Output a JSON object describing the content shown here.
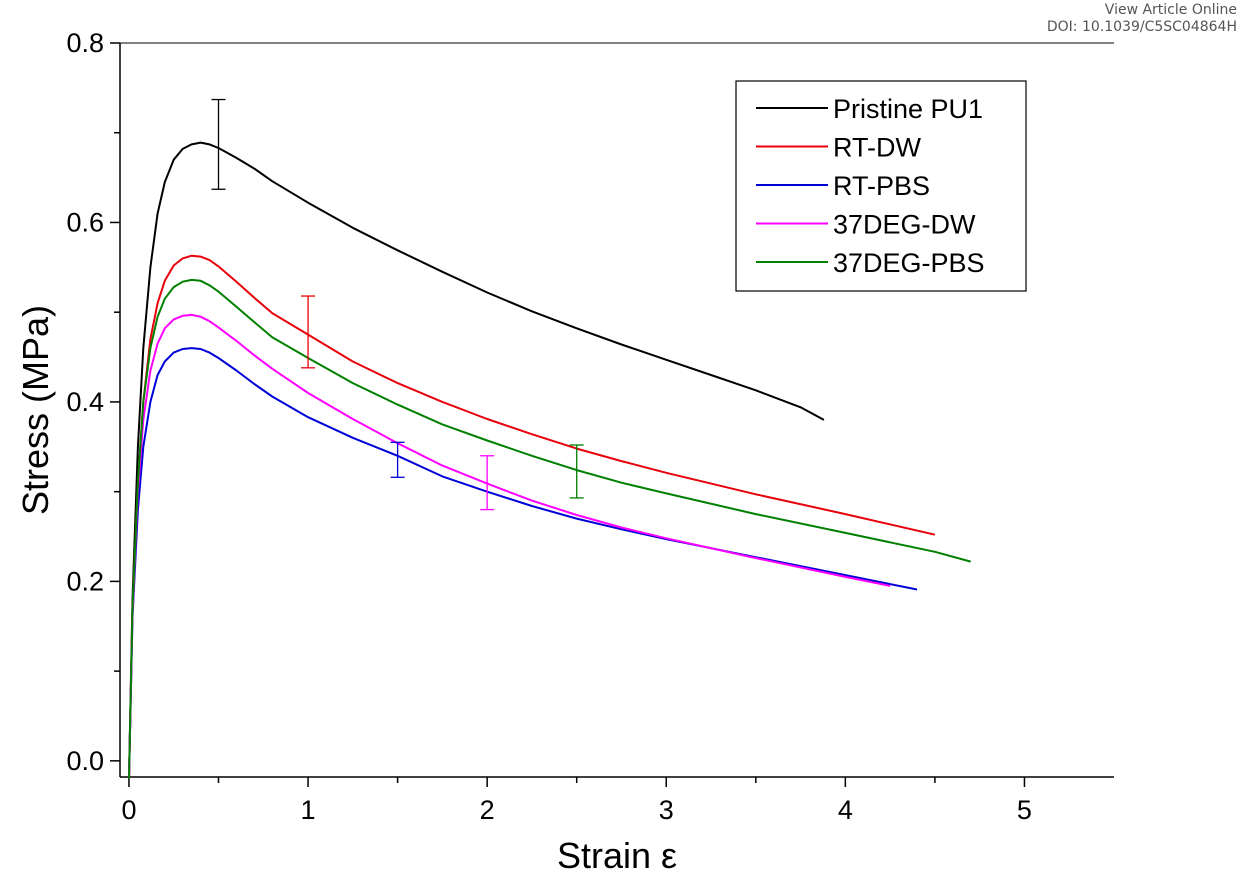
{
  "header": {
    "view_article": "View Article Online",
    "doi": "DOI: 10.1039/C5SC04864H"
  },
  "chart_data": {
    "type": "line",
    "xlabel": "Strain ε",
    "ylabel": "Stress (MPa)",
    "xlim": [
      -0.05,
      5.5
    ],
    "ylim": [
      -0.018,
      0.8
    ],
    "xticks": [
      0,
      1,
      2,
      3,
      4,
      5
    ],
    "xtick_labels": [
      "0",
      "1",
      "2",
      "3",
      "4",
      "5"
    ],
    "yticks": [
      0.0,
      0.2,
      0.4,
      0.6,
      0.8
    ],
    "ytick_labels": [
      "0.0",
      "0.2",
      "0.4",
      "0.6",
      "0.8"
    ],
    "grid": false,
    "legend_position": "top-right",
    "series": [
      {
        "name": "Pristine PU1",
        "color": "#000000",
        "x": [
          0,
          0.02,
          0.05,
          0.08,
          0.12,
          0.16,
          0.2,
          0.25,
          0.3,
          0.35,
          0.4,
          0.45,
          0.5,
          0.6,
          0.7,
          0.8,
          1.0,
          1.25,
          1.5,
          1.75,
          2.0,
          2.25,
          2.5,
          2.75,
          3.0,
          3.25,
          3.5,
          3.75,
          3.88
        ],
        "y": [
          -0.02,
          0.18,
          0.35,
          0.46,
          0.55,
          0.61,
          0.645,
          0.67,
          0.682,
          0.687,
          0.689,
          0.687,
          0.683,
          0.672,
          0.66,
          0.646,
          0.622,
          0.594,
          0.569,
          0.545,
          0.522,
          0.501,
          0.482,
          0.464,
          0.447,
          0.43,
          0.413,
          0.394,
          0.38
        ]
      },
      {
        "name": "RT-DW",
        "color": "#e8000b",
        "x": [
          0,
          0.02,
          0.05,
          0.08,
          0.12,
          0.16,
          0.2,
          0.25,
          0.3,
          0.35,
          0.4,
          0.45,
          0.5,
          0.6,
          0.7,
          0.8,
          1.0,
          1.25,
          1.5,
          1.75,
          2.0,
          2.25,
          2.5,
          2.75,
          3.0,
          3.5,
          4.0,
          4.5
        ],
        "y": [
          -0.02,
          0.17,
          0.31,
          0.4,
          0.47,
          0.51,
          0.535,
          0.552,
          0.56,
          0.563,
          0.562,
          0.558,
          0.551,
          0.534,
          0.516,
          0.499,
          0.475,
          0.445,
          0.421,
          0.4,
          0.381,
          0.364,
          0.348,
          0.334,
          0.321,
          0.297,
          0.275,
          0.252
        ]
      },
      {
        "name": "RT-PBS",
        "color": "#0000d8",
        "x": [
          0,
          0.02,
          0.05,
          0.08,
          0.12,
          0.16,
          0.2,
          0.25,
          0.3,
          0.35,
          0.4,
          0.45,
          0.5,
          0.6,
          0.7,
          0.8,
          1.0,
          1.25,
          1.5,
          1.75,
          2.0,
          2.25,
          2.5,
          2.75,
          3.0,
          3.5,
          4.0,
          4.4
        ],
        "y": [
          -0.02,
          0.16,
          0.28,
          0.35,
          0.4,
          0.43,
          0.445,
          0.455,
          0.459,
          0.46,
          0.459,
          0.455,
          0.449,
          0.435,
          0.42,
          0.406,
          0.383,
          0.36,
          0.34,
          0.317,
          0.3,
          0.284,
          0.27,
          0.258,
          0.247,
          0.227,
          0.207,
          0.191
        ]
      },
      {
        "name": "37DEG-DW",
        "color": "#ff00ff",
        "x": [
          0,
          0.02,
          0.05,
          0.08,
          0.12,
          0.16,
          0.2,
          0.25,
          0.3,
          0.35,
          0.4,
          0.45,
          0.5,
          0.6,
          0.7,
          0.8,
          1.0,
          1.25,
          1.5,
          1.75,
          2.0,
          2.25,
          2.5,
          2.75,
          3.0,
          3.5,
          4.0,
          4.25
        ],
        "y": [
          -0.02,
          0.165,
          0.3,
          0.38,
          0.435,
          0.465,
          0.482,
          0.492,
          0.496,
          0.497,
          0.495,
          0.49,
          0.483,
          0.468,
          0.452,
          0.437,
          0.41,
          0.381,
          0.354,
          0.329,
          0.309,
          0.29,
          0.274,
          0.26,
          0.248,
          0.226,
          0.205,
          0.195
        ]
      },
      {
        "name": "37DEG-PBS",
        "color": "#008000",
        "x": [
          0,
          0.02,
          0.05,
          0.08,
          0.12,
          0.16,
          0.2,
          0.25,
          0.3,
          0.35,
          0.4,
          0.45,
          0.5,
          0.6,
          0.7,
          0.8,
          1.0,
          1.25,
          1.5,
          1.75,
          2.0,
          2.25,
          2.5,
          2.75,
          3.0,
          3.5,
          4.0,
          4.5,
          4.7
        ],
        "y": [
          -0.02,
          0.17,
          0.31,
          0.4,
          0.46,
          0.495,
          0.515,
          0.528,
          0.534,
          0.536,
          0.535,
          0.53,
          0.523,
          0.506,
          0.489,
          0.472,
          0.449,
          0.421,
          0.397,
          0.375,
          0.357,
          0.34,
          0.324,
          0.31,
          0.298,
          0.275,
          0.254,
          0.233,
          0.222
        ]
      }
    ],
    "error_bars": [
      {
        "series": "Pristine PU1",
        "x": 0.5,
        "low": 0.637,
        "high": 0.737
      },
      {
        "series": "RT-DW",
        "x": 1.0,
        "low": 0.438,
        "high": 0.518
      },
      {
        "series": "RT-PBS",
        "x": 1.5,
        "low": 0.316,
        "high": 0.355
      },
      {
        "series": "37DEG-DW",
        "x": 2.0,
        "low": 0.28,
        "high": 0.34
      },
      {
        "series": "37DEG-PBS",
        "x": 2.5,
        "low": 0.293,
        "high": 0.352
      }
    ]
  }
}
